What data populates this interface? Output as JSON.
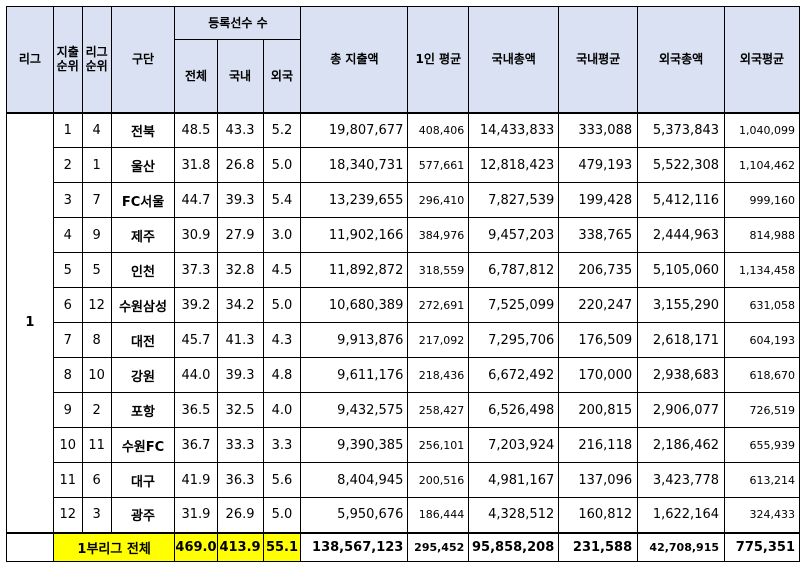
{
  "header": {
    "league": "리그",
    "spend_rank": "지출\n순위",
    "league_rank": "리그\n순위",
    "club": "구단",
    "registered_players": "등록선수 수",
    "reg_total": "전체",
    "reg_domestic": "국내",
    "reg_foreign": "외국",
    "total_spend": "총 지출액",
    "per_person_avg": "1인 평균",
    "domestic_total": "국내총액",
    "domestic_avg": "국내평균",
    "foreign_total": "외국총액",
    "foreign_avg": "외국평균"
  },
  "league_label": "1",
  "rows": [
    {
      "spend_rank": "1",
      "league_rank": "4",
      "club": "전북",
      "reg_total": "48.5",
      "reg_domestic": "43.3",
      "reg_foreign": "5.2",
      "total_spend": "19,807,677",
      "per_person_avg": "408,406",
      "domestic_total": "14,433,833",
      "domestic_avg": "333,088",
      "foreign_total": "5,373,843",
      "foreign_avg": "1,040,099"
    },
    {
      "spend_rank": "2",
      "league_rank": "1",
      "club": "울산",
      "reg_total": "31.8",
      "reg_domestic": "26.8",
      "reg_foreign": "5.0",
      "total_spend": "18,340,731",
      "per_person_avg": "577,661",
      "domestic_total": "12,818,423",
      "domestic_avg": "479,193",
      "foreign_total": "5,522,308",
      "foreign_avg": "1,104,462"
    },
    {
      "spend_rank": "3",
      "league_rank": "7",
      "club": "FC서울",
      "reg_total": "44.7",
      "reg_domestic": "39.3",
      "reg_foreign": "5.4",
      "total_spend": "13,239,655",
      "per_person_avg": "296,410",
      "domestic_total": "7,827,539",
      "domestic_avg": "199,428",
      "foreign_total": "5,412,116",
      "foreign_avg": "999,160"
    },
    {
      "spend_rank": "4",
      "league_rank": "9",
      "club": "제주",
      "reg_total": "30.9",
      "reg_domestic": "27.9",
      "reg_foreign": "3.0",
      "total_spend": "11,902,166",
      "per_person_avg": "384,976",
      "domestic_total": "9,457,203",
      "domestic_avg": "338,765",
      "foreign_total": "2,444,963",
      "foreign_avg": "814,988"
    },
    {
      "spend_rank": "5",
      "league_rank": "5",
      "club": "인천",
      "reg_total": "37.3",
      "reg_domestic": "32.8",
      "reg_foreign": "4.5",
      "total_spend": "11,892,872",
      "per_person_avg": "318,559",
      "domestic_total": "6,787,812",
      "domestic_avg": "206,735",
      "foreign_total": "5,105,060",
      "foreign_avg": "1,134,458"
    },
    {
      "spend_rank": "6",
      "league_rank": "12",
      "club": "수원삼성",
      "reg_total": "39.2",
      "reg_domestic": "34.2",
      "reg_foreign": "5.0",
      "total_spend": "10,680,389",
      "per_person_avg": "272,691",
      "domestic_total": "7,525,099",
      "domestic_avg": "220,247",
      "foreign_total": "3,155,290",
      "foreign_avg": "631,058"
    },
    {
      "spend_rank": "7",
      "league_rank": "8",
      "club": "대전",
      "reg_total": "45.7",
      "reg_domestic": "41.3",
      "reg_foreign": "4.3",
      "total_spend": "9,913,876",
      "per_person_avg": "217,092",
      "domestic_total": "7,295,706",
      "domestic_avg": "176,509",
      "foreign_total": "2,618,171",
      "foreign_avg": "604,193"
    },
    {
      "spend_rank": "8",
      "league_rank": "10",
      "club": "강원",
      "reg_total": "44.0",
      "reg_domestic": "39.3",
      "reg_foreign": "4.8",
      "total_spend": "9,611,176",
      "per_person_avg": "218,436",
      "domestic_total": "6,672,492",
      "domestic_avg": "170,000",
      "foreign_total": "2,938,683",
      "foreign_avg": "618,670"
    },
    {
      "spend_rank": "9",
      "league_rank": "2",
      "club": "포항",
      "reg_total": "36.5",
      "reg_domestic": "32.5",
      "reg_foreign": "4.0",
      "total_spend": "9,432,575",
      "per_person_avg": "258,427",
      "domestic_total": "6,526,498",
      "domestic_avg": "200,815",
      "foreign_total": "2,906,077",
      "foreign_avg": "726,519"
    },
    {
      "spend_rank": "10",
      "league_rank": "11",
      "club": "수원FC",
      "reg_total": "36.7",
      "reg_domestic": "33.3",
      "reg_foreign": "3.3",
      "total_spend": "9,390,385",
      "per_person_avg": "256,101",
      "domestic_total": "7,203,924",
      "domestic_avg": "216,118",
      "foreign_total": "2,186,462",
      "foreign_avg": "655,939"
    },
    {
      "spend_rank": "11",
      "league_rank": "6",
      "club": "대구",
      "reg_total": "41.9",
      "reg_domestic": "36.3",
      "reg_foreign": "5.6",
      "total_spend": "8,404,945",
      "per_person_avg": "200,516",
      "domestic_total": "4,981,167",
      "domestic_avg": "137,096",
      "foreign_total": "3,423,778",
      "foreign_avg": "613,214"
    },
    {
      "spend_rank": "12",
      "league_rank": "3",
      "club": "광주",
      "reg_total": "31.9",
      "reg_domestic": "26.9",
      "reg_foreign": "5.0",
      "total_spend": "5,950,676",
      "per_person_avg": "186,444",
      "domestic_total": "4,328,512",
      "domestic_avg": "160,812",
      "foreign_total": "1,622,164",
      "foreign_avg": "324,433"
    }
  ],
  "total": {
    "label": "1부리그 전체",
    "reg_total": "469.0",
    "reg_domestic": "413.9",
    "reg_foreign": "55.1",
    "total_spend": "138,567,123",
    "per_person_avg": "295,452",
    "domestic_total": "95,858,208",
    "domestic_avg": "231,588",
    "foreign_total": "42,708,915",
    "foreign_avg": "775,351"
  },
  "colors": {
    "header_bg": "#d9e1f2",
    "total_highlight": "#ffff00"
  }
}
